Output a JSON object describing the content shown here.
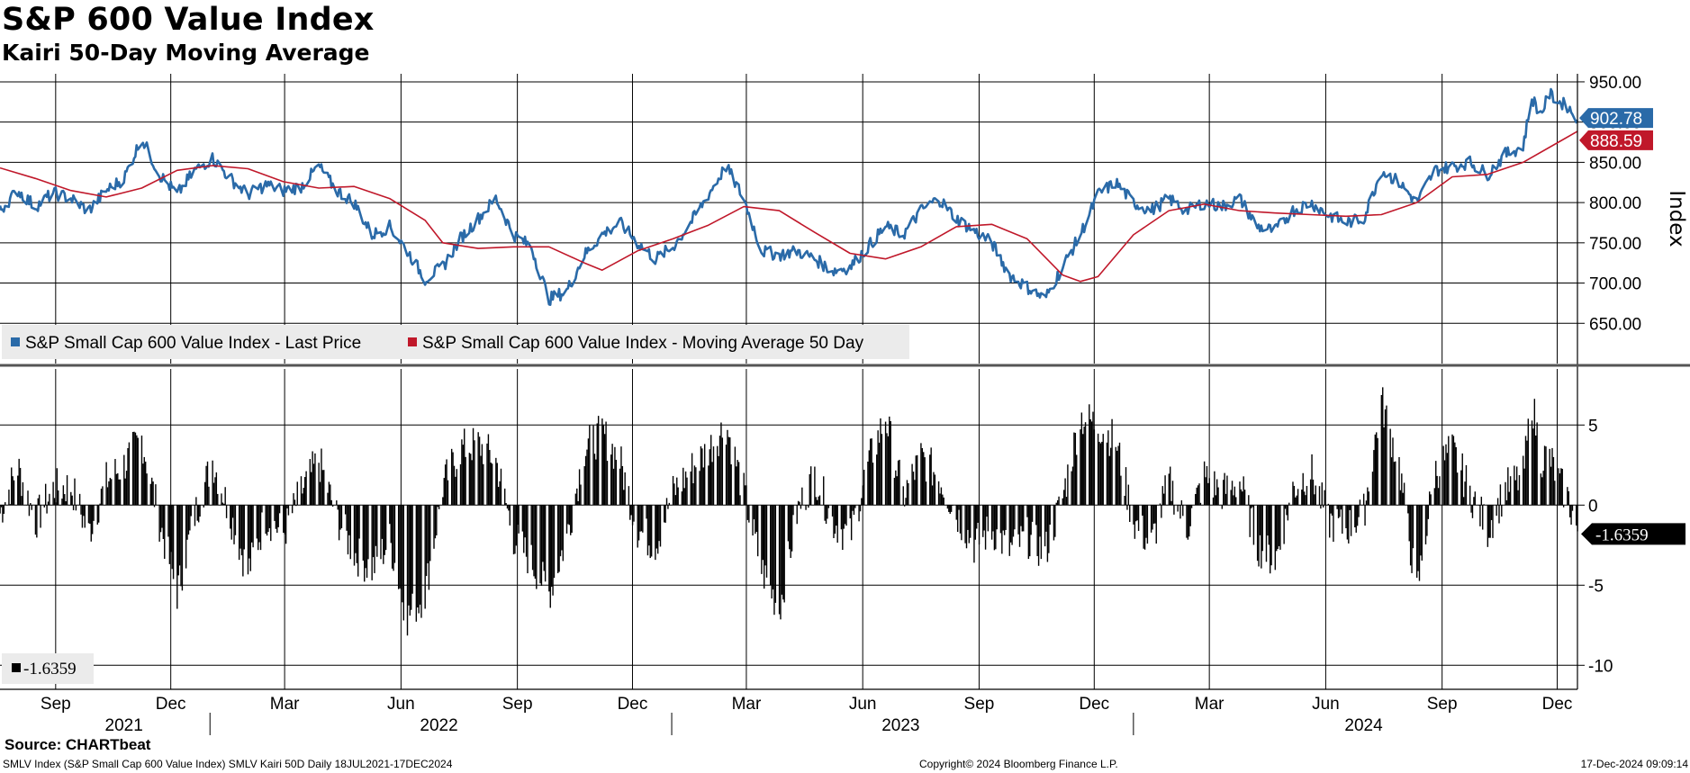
{
  "header": {
    "title": "S&P 600 Value Index",
    "subtitle": "Kairi 50-Day Moving Average"
  },
  "footer": {
    "source": "Source: CHARTbeat",
    "security_info": "SMLV Index (S&P Small Cap 600 Value Index) SMLV Kairi 50D  Daily 18JUL2021-17DEC2024",
    "copyright": "Copyright© 2024 Bloomberg Finance L.P.",
    "timestamp": "17-Dec-2024 09:09:14"
  },
  "colors": {
    "price": "#2a6aa8",
    "ma50": "#c0182a",
    "kairi": "#000000",
    "grid": "#000000"
  },
  "chart_data": [
    {
      "type": "line",
      "panel": "upper",
      "ylabel": "Index",
      "ylim": [
        600,
        960
      ],
      "y_ticks": [
        650,
        700,
        750,
        800,
        850,
        900,
        950
      ],
      "y_tick_labels": [
        "650.00",
        "700.00",
        "750.00",
        "800.00",
        "850.00",
        "900.00",
        "950.00"
      ],
      "legend_position": "bottom-left",
      "last_value_labels": [
        {
          "series": "price",
          "text": "902.78",
          "value": 902.78,
          "color": "#2a6aa8"
        },
        {
          "series": "ma50",
          "text": "888.59",
          "value": 888.59,
          "color": "#c0182a"
        }
      ],
      "series": [
        {
          "key": "price",
          "name": "S&P Small Cap 600 Value Index - Last Price",
          "color": "#2a6aa8",
          "points": [
            [
              "2021-07-19",
              790
            ],
            [
              "2021-08-02",
              815
            ],
            [
              "2021-08-16",
              795
            ],
            [
              "2021-08-30",
              812
            ],
            [
              "2021-09-13",
              805
            ],
            [
              "2021-09-27",
              790
            ],
            [
              "2021-10-11",
              815
            ],
            [
              "2021-10-25",
              830
            ],
            [
              "2021-11-08",
              880
            ],
            [
              "2021-11-22",
              835
            ],
            [
              "2021-12-06",
              810
            ],
            [
              "2021-12-20",
              840
            ],
            [
              "2022-01-03",
              855
            ],
            [
              "2022-01-17",
              830
            ],
            [
              "2022-01-31",
              810
            ],
            [
              "2022-02-14",
              822
            ],
            [
              "2022-02-28",
              815
            ],
            [
              "2022-03-14",
              820
            ],
            [
              "2022-03-28",
              845
            ],
            [
              "2022-04-11",
              815
            ],
            [
              "2022-04-25",
              800
            ],
            [
              "2022-05-09",
              760
            ],
            [
              "2022-05-23",
              770
            ],
            [
              "2022-06-06",
              740
            ],
            [
              "2022-06-20",
              705
            ],
            [
              "2022-07-04",
              720
            ],
            [
              "2022-07-18",
              755
            ],
            [
              "2022-08-01",
              780
            ],
            [
              "2022-08-15",
              805
            ],
            [
              "2022-08-29",
              760
            ],
            [
              "2022-09-12",
              745
            ],
            [
              "2022-09-26",
              680
            ],
            [
              "2022-10-10",
              690
            ],
            [
              "2022-10-24",
              735
            ],
            [
              "2022-11-07",
              760
            ],
            [
              "2022-11-21",
              775
            ],
            [
              "2022-12-05",
              750
            ],
            [
              "2022-12-19",
              730
            ],
            [
              "2023-01-02",
              745
            ],
            [
              "2023-01-16",
              775
            ],
            [
              "2023-01-30",
              810
            ],
            [
              "2023-02-13",
              845
            ],
            [
              "2023-02-27",
              805
            ],
            [
              "2023-03-13",
              740
            ],
            [
              "2023-03-27",
              735
            ],
            [
              "2023-04-10",
              740
            ],
            [
              "2023-04-24",
              730
            ],
            [
              "2023-05-08",
              715
            ],
            [
              "2023-05-22",
              720
            ],
            [
              "2023-06-05",
              745
            ],
            [
              "2023-06-19",
              770
            ],
            [
              "2023-07-03",
              760
            ],
            [
              "2023-07-17",
              790
            ],
            [
              "2023-07-31",
              805
            ],
            [
              "2023-08-14",
              780
            ],
            [
              "2023-08-28",
              765
            ],
            [
              "2023-09-11",
              750
            ],
            [
              "2023-09-25",
              710
            ],
            [
              "2023-10-09",
              695
            ],
            [
              "2023-10-23",
              680
            ],
            [
              "2023-11-06",
              720
            ],
            [
              "2023-11-20",
              760
            ],
            [
              "2023-12-04",
              810
            ],
            [
              "2023-12-18",
              825
            ],
            [
              "2024-01-01",
              800
            ],
            [
              "2024-01-15",
              790
            ],
            [
              "2024-01-29",
              805
            ],
            [
              "2024-02-12",
              790
            ],
            [
              "2024-02-26",
              800
            ],
            [
              "2024-03-11",
              795
            ],
            [
              "2024-03-25",
              805
            ],
            [
              "2024-04-08",
              770
            ],
            [
              "2024-04-22",
              765
            ],
            [
              "2024-05-06",
              790
            ],
            [
              "2024-05-20",
              800
            ],
            [
              "2024-06-03",
              785
            ],
            [
              "2024-06-17",
              775
            ],
            [
              "2024-07-01",
              780
            ],
            [
              "2024-07-15",
              840
            ],
            [
              "2024-07-29",
              825
            ],
            [
              "2024-08-12",
              800
            ],
            [
              "2024-08-26",
              840
            ],
            [
              "2024-09-09",
              845
            ],
            [
              "2024-09-23",
              850
            ],
            [
              "2024-10-07",
              835
            ],
            [
              "2024-10-21",
              860
            ],
            [
              "2024-11-04",
              870
            ],
            [
              "2024-11-11",
              930
            ],
            [
              "2024-11-18",
              910
            ],
            [
              "2024-11-25",
              935
            ],
            [
              "2024-12-02",
              925
            ],
            [
              "2024-12-09",
              920
            ],
            [
              "2024-12-17",
              902.78
            ]
          ]
        },
        {
          "key": "ma50",
          "name": "S&P Small Cap 600 Value Index - Moving Average 50 Day",
          "color": "#c0182a",
          "points": [
            [
              "2021-07-19",
              843
            ],
            [
              "2021-08-16",
              830
            ],
            [
              "2021-09-13",
              815
            ],
            [
              "2021-10-11",
              807
            ],
            [
              "2021-11-08",
              818
            ],
            [
              "2021-12-06",
              840
            ],
            [
              "2022-01-03",
              846
            ],
            [
              "2022-01-31",
              842
            ],
            [
              "2022-02-28",
              826
            ],
            [
              "2022-03-28",
              818
            ],
            [
              "2022-04-25",
              820
            ],
            [
              "2022-05-23",
              805
            ],
            [
              "2022-06-20",
              778
            ],
            [
              "2022-07-04",
              750
            ],
            [
              "2022-08-01",
              743
            ],
            [
              "2022-08-29",
              745
            ],
            [
              "2022-09-26",
              745
            ],
            [
              "2022-10-24",
              725
            ],
            [
              "2022-11-07",
              716
            ],
            [
              "2022-12-05",
              740
            ],
            [
              "2023-01-02",
              755
            ],
            [
              "2023-01-30",
              772
            ],
            [
              "2023-02-27",
              795
            ],
            [
              "2023-03-27",
              790
            ],
            [
              "2023-04-24",
              763
            ],
            [
              "2023-05-22",
              737
            ],
            [
              "2023-06-19",
              730
            ],
            [
              "2023-07-17",
              745
            ],
            [
              "2023-08-14",
              770
            ],
            [
              "2023-09-11",
              773
            ],
            [
              "2023-10-09",
              755
            ],
            [
              "2023-11-06",
              710
            ],
            [
              "2023-11-20",
              702
            ],
            [
              "2023-12-04",
              708
            ],
            [
              "2024-01-01",
              760
            ],
            [
              "2024-01-29",
              790
            ],
            [
              "2024-02-26",
              798
            ],
            [
              "2024-03-25",
              790
            ],
            [
              "2024-04-22",
              787
            ],
            [
              "2024-05-20",
              785
            ],
            [
              "2024-06-17",
              783
            ],
            [
              "2024-07-15",
              785
            ],
            [
              "2024-08-12",
              800
            ],
            [
              "2024-09-09",
              832
            ],
            [
              "2024-10-07",
              835
            ],
            [
              "2024-11-04",
              850
            ],
            [
              "2024-12-02",
              875
            ],
            [
              "2024-12-17",
              888.59
            ]
          ]
        }
      ]
    },
    {
      "type": "bar",
      "panel": "lower",
      "series_key": "kairi",
      "ylim": [
        -11.5,
        8.5
      ],
      "y_ticks": [
        -10,
        -5,
        0,
        5
      ],
      "y_tick_labels": [
        "-10",
        "-5",
        "0",
        "5"
      ],
      "legend_position": "bottom-left",
      "last_value_label": {
        "text": "-1.6359",
        "value": -1.6359
      },
      "legend_label": "-1.6359",
      "anchors": [
        [
          "2021-07-19",
          -0.5
        ],
        [
          "2021-08-02",
          2.4
        ],
        [
          "2021-08-16",
          -1.0
        ],
        [
          "2021-08-30",
          1.0
        ],
        [
          "2021-09-13",
          1.2
        ],
        [
          "2021-09-27",
          -1.8
        ],
        [
          "2021-10-11",
          1.5
        ],
        [
          "2021-10-25",
          2.5
        ],
        [
          "2021-11-08",
          4.2
        ],
        [
          "2021-11-22",
          -1.0
        ],
        [
          "2021-12-06",
          -5.5
        ],
        [
          "2021-12-20",
          -0.6
        ],
        [
          "2022-01-03",
          2.8
        ],
        [
          "2022-01-17",
          -0.6
        ],
        [
          "2022-01-31",
          -4.2
        ],
        [
          "2022-02-14",
          -0.7
        ],
        [
          "2022-02-28",
          -1.8
        ],
        [
          "2022-03-14",
          0.8
        ],
        [
          "2022-03-28",
          2.8
        ],
        [
          "2022-04-11",
          -0.7
        ],
        [
          "2022-04-25",
          -3.0
        ],
        [
          "2022-05-09",
          -4.0
        ],
        [
          "2022-05-23",
          -2.2
        ],
        [
          "2022-06-06",
          -7.0
        ],
        [
          "2022-06-20",
          -5.5
        ],
        [
          "2022-07-04",
          1.2
        ],
        [
          "2022-07-18",
          3.5
        ],
        [
          "2022-08-01",
          3.8
        ],
        [
          "2022-08-15",
          2.8
        ],
        [
          "2022-08-29",
          -2.0
        ],
        [
          "2022-09-12",
          -3.5
        ],
        [
          "2022-09-26",
          -5.5
        ],
        [
          "2022-10-10",
          -2.0
        ],
        [
          "2022-10-24",
          3.5
        ],
        [
          "2022-11-07",
          4.5
        ],
        [
          "2022-11-21",
          2.8
        ],
        [
          "2022-12-05",
          -1.5
        ],
        [
          "2022-12-19",
          -2.5
        ],
        [
          "2023-01-02",
          0.8
        ],
        [
          "2023-01-16",
          2.2
        ],
        [
          "2023-01-30",
          3.5
        ],
        [
          "2023-02-13",
          5.0
        ],
        [
          "2023-02-27",
          0.8
        ],
        [
          "2023-03-13",
          -4.0
        ],
        [
          "2023-03-27",
          -6.5
        ],
        [
          "2023-04-10",
          -0.5
        ],
        [
          "2023-04-24",
          2.0
        ],
        [
          "2023-05-08",
          -1.0
        ],
        [
          "2023-05-22",
          -2.0
        ],
        [
          "2023-06-05",
          2.5
        ],
        [
          "2023-06-19",
          5.5
        ],
        [
          "2023-07-03",
          0.5
        ],
        [
          "2023-07-17",
          3.0
        ],
        [
          "2023-07-31",
          1.8
        ],
        [
          "2023-08-14",
          -0.5
        ],
        [
          "2023-08-28",
          -2.5
        ],
        [
          "2023-09-11",
          -1.5
        ],
        [
          "2023-09-25",
          -2.8
        ],
        [
          "2023-10-09",
          -2.0
        ],
        [
          "2023-10-23",
          -3.0
        ],
        [
          "2023-11-06",
          0.5
        ],
        [
          "2023-11-20",
          5.5
        ],
        [
          "2023-12-04",
          5.0
        ],
        [
          "2023-12-18",
          4.0
        ],
        [
          "2024-01-01",
          -1.0
        ],
        [
          "2024-01-15",
          -2.5
        ],
        [
          "2024-01-29",
          1.5
        ],
        [
          "2024-02-12",
          -1.5
        ],
        [
          "2024-02-26",
          1.8
        ],
        [
          "2024-03-11",
          0.8
        ],
        [
          "2024-03-25",
          1.5
        ],
        [
          "2024-04-08",
          -2.5
        ],
        [
          "2024-04-22",
          -3.5
        ],
        [
          "2024-05-06",
          1.0
        ],
        [
          "2024-05-20",
          2.2
        ],
        [
          "2024-06-03",
          -1.0
        ],
        [
          "2024-06-17",
          -1.5
        ],
        [
          "2024-07-01",
          -0.5
        ],
        [
          "2024-07-15",
          6.5
        ],
        [
          "2024-07-29",
          2.5
        ],
        [
          "2024-08-12",
          -5.5
        ],
        [
          "2024-08-26",
          2.0
        ],
        [
          "2024-09-09",
          3.5
        ],
        [
          "2024-09-23",
          0.8
        ],
        [
          "2024-10-07",
          -1.5
        ],
        [
          "2024-10-21",
          1.0
        ],
        [
          "2024-11-04",
          1.8
        ],
        [
          "2024-11-11",
          6.5
        ],
        [
          "2024-11-18",
          3.0
        ],
        [
          "2024-11-25",
          3.0
        ],
        [
          "2024-12-02",
          1.5
        ],
        [
          "2024-12-09",
          0.5
        ],
        [
          "2024-12-17",
          -1.6359
        ]
      ]
    }
  ],
  "x_axis": {
    "month_ticks": [
      {
        "date": "2021-09-01",
        "label": "Sep"
      },
      {
        "date": "2021-12-01",
        "label": "Dec"
      },
      {
        "date": "2022-03-01",
        "label": "Mar"
      },
      {
        "date": "2022-06-01",
        "label": "Jun"
      },
      {
        "date": "2022-09-01",
        "label": "Sep"
      },
      {
        "date": "2022-12-01",
        "label": "Dec"
      },
      {
        "date": "2023-03-01",
        "label": "Mar"
      },
      {
        "date": "2023-06-01",
        "label": "Jun"
      },
      {
        "date": "2023-09-01",
        "label": "Sep"
      },
      {
        "date": "2023-12-01",
        "label": "Dec"
      },
      {
        "date": "2024-03-01",
        "label": "Mar"
      },
      {
        "date": "2024-06-01",
        "label": "Jun"
      },
      {
        "date": "2024-09-01",
        "label": "Sep"
      },
      {
        "date": "2024-12-01",
        "label": "Dec"
      }
    ],
    "years": [
      {
        "label": "2021",
        "center": "2021-10-25",
        "end": "2022-01-01"
      },
      {
        "label": "2022",
        "center": "2022-07-01",
        "end": "2023-01-01"
      },
      {
        "label": "2023",
        "center": "2023-07-01",
        "end": "2024-01-01"
      },
      {
        "label": "2024",
        "center": "2024-07-01",
        "end": ""
      }
    ]
  }
}
